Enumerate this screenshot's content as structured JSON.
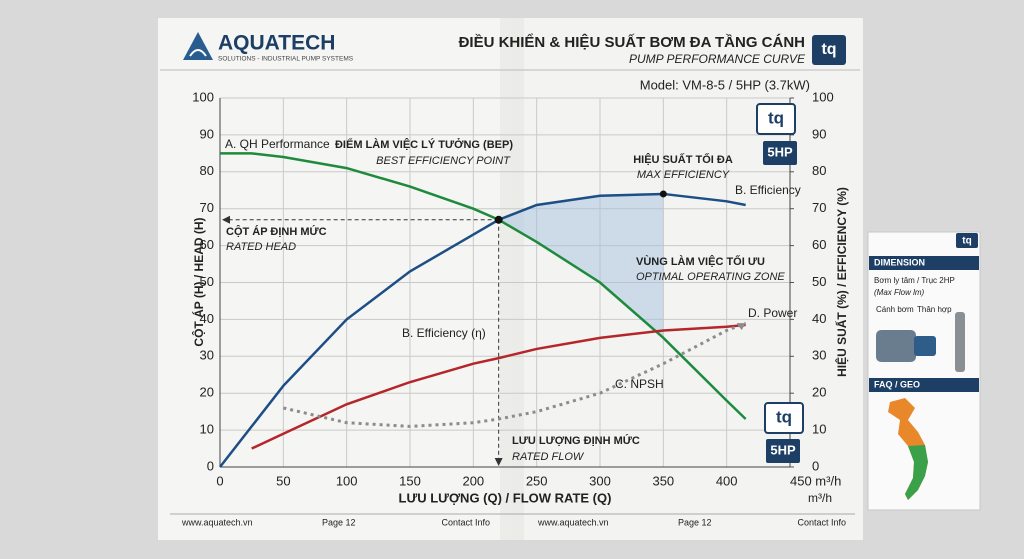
{
  "header": {
    "logo": "AQUATECH",
    "tagline": "SOLUTIONS - INDUSTRIAL PUMP SYSTEMS",
    "title": "ĐIỀU KHIỂN & HIỆU SUẤT BƠM ĐA TẦNG CÁNH",
    "subtitle": "PUMP PERFORMANCE CURVE",
    "badge": "tq",
    "model": "Model: VM-8-5 / 5HP (3.7kW)"
  },
  "chart_data": {
    "type": "line",
    "y_label": "CỘT ÁP (H) / HEAD (H)",
    "y2_label": "HIỆU SUẤT (%) / EFFICIENCY (%)",
    "x_label": "LƯU LƯỢNG (Q) / FLOW RATE (Q)",
    "x_unit": "m³/h",
    "x": [
      0,
      25,
      50,
      100,
      150,
      200,
      220,
      250,
      300,
      350,
      400,
      415
    ],
    "series": [
      {
        "name": "A. QH Performance",
        "color": "#1e8a3c",
        "values": [
          85,
          85,
          84,
          81,
          76,
          70,
          67,
          61,
          50,
          35,
          18,
          13
        ]
      },
      {
        "name": "B. Efficiency",
        "color": "#1d4e86",
        "axis": "y2",
        "values": [
          0,
          11,
          22,
          40,
          53,
          63,
          67,
          71,
          73.5,
          74,
          72,
          71
        ]
      },
      {
        "name": "D. Power",
        "color": "#b5262a",
        "values": [
          null,
          5,
          9,
          17,
          23,
          28,
          29.5,
          32,
          35,
          37,
          38,
          38.5
        ]
      },
      {
        "name": "C. NPSH",
        "color": "#8c8c8c",
        "dashed": true,
        "values": [
          null,
          null,
          16,
          12,
          11,
          12,
          13,
          15,
          20,
          28,
          37,
          39
        ]
      }
    ],
    "xlim": [
      0,
      450
    ],
    "xticks": [
      0,
      50,
      100,
      150,
      200,
      250,
      300,
      350,
      400,
      {
        "value": 450,
        "label": "450 m³/h"
      }
    ],
    "ylim": [
      0,
      100
    ],
    "yticks": [
      0,
      10,
      20,
      30,
      40,
      50,
      60,
      70,
      80,
      90,
      100
    ],
    "y2lim": [
      0,
      100
    ],
    "y2ticks": [
      0,
      10,
      20,
      30,
      40,
      50,
      60,
      70,
      80,
      90,
      100
    ],
    "grid": true,
    "bep": {
      "x": 220,
      "y": 67
    },
    "max_efficiency": {
      "x": 350,
      "y": 74
    },
    "annotations": [
      "ĐIỂM LÀM VIỆC LÝ TƯỞNG (BEP)",
      "BEST EFFICIENCY POINT",
      "HIỆU SUẤT TỐI ĐA",
      "MAX EFFICIENCY",
      "CỘT ÁP ĐỊNH MỨC",
      "RATED HEAD",
      "VÙNG LÀM VIỆC TỐI ƯU",
      "OPTIMAL OPERATING ZONE",
      "LƯU LƯỢNG ĐỊNH MỨC",
      "RATED FLOW",
      "B. Efficiency (η)"
    ],
    "badges": [
      "tq",
      "5HP",
      "tq",
      "5HP"
    ]
  },
  "footer": {
    "left": [
      "www.aquatech.vn",
      "Page 12",
      "Contact Info"
    ],
    "right": [
      "www.aquatech.vn",
      "Page 12",
      "Contact Info"
    ]
  },
  "sidebar": {
    "badge": "tq",
    "dimension": "DIMENSION",
    "line1": "Bơm ly tâm / Trục 2HP",
    "line2": "(Max Flow lm)",
    "part1": "Cánh bơm",
    "part2": "Thân hợp",
    "faq": "FAQ / GEO"
  }
}
